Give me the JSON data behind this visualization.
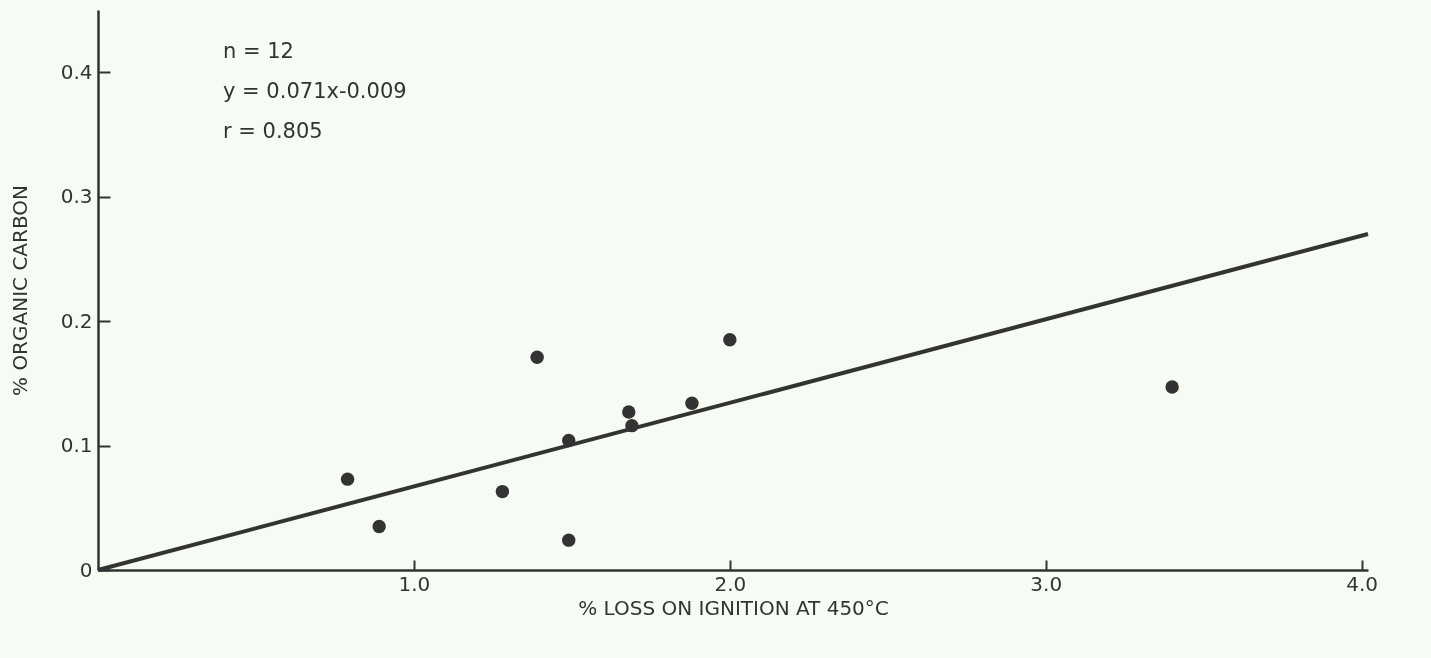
{
  "chart_data": {
    "type": "scatter",
    "xlabel": "% LOSS ON IGNITION AT 450°C",
    "ylabel": "% ORGANIC CARBON",
    "xlim": [
      0,
      4.02
    ],
    "ylim": [
      0,
      0.45
    ],
    "xticks": [
      {
        "value": 1,
        "label": "1.0"
      },
      {
        "value": 2,
        "label": "2.0"
      },
      {
        "value": 3,
        "label": "3.0"
      },
      {
        "value": 4,
        "label": "4.0"
      }
    ],
    "yticks": [
      0,
      0.1,
      0.2,
      0.3,
      0.4
    ],
    "grid": false,
    "marker": "circle",
    "annotations": [
      "n = 12",
      "y = 0.071x-0.009",
      "r = 0.805"
    ],
    "series": [
      {
        "color": "#333333",
        "x": [
          0.79,
          0.89,
          1.28,
          1.39,
          1.49,
          1.49,
          1.68,
          1.69,
          1.88,
          2.0,
          3.4
        ],
        "values": [
          0.073,
          0.035,
          0.063,
          0.171,
          0.024,
          0.104,
          0.127,
          0.116,
          0.134,
          0.185,
          0.147
        ]
      },
      {
        "type": "line",
        "color": "#333333",
        "line_style": "solid",
        "marker": "none",
        "x": [
          0,
          4.02
        ],
        "values": [
          0,
          0.27
        ]
      }
    ]
  }
}
